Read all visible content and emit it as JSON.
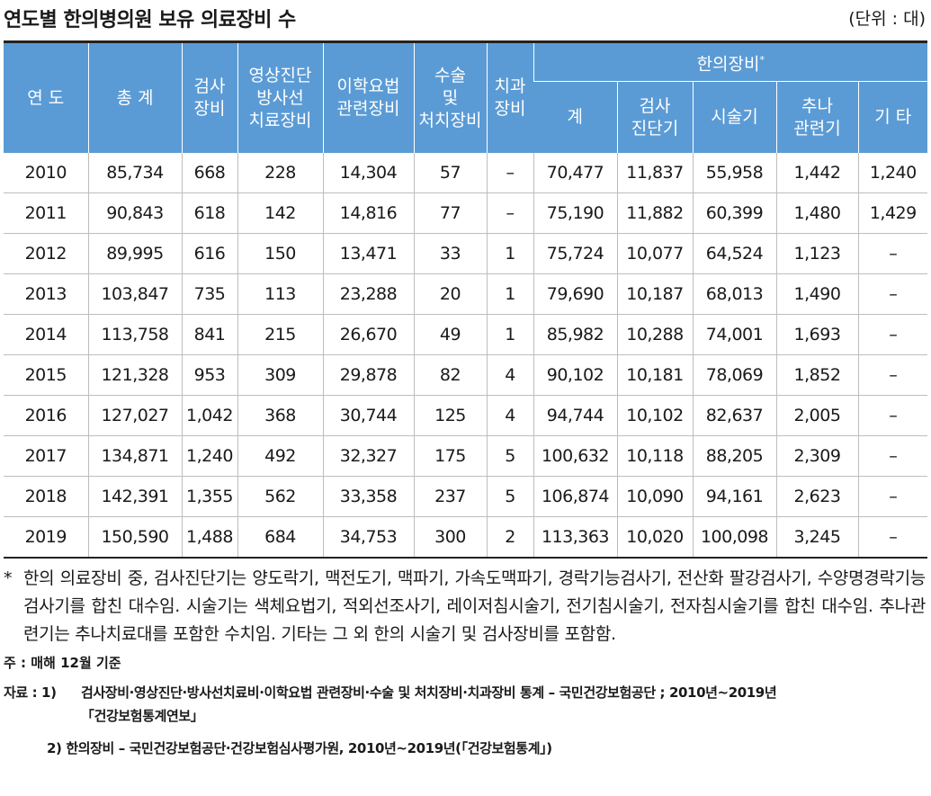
{
  "title": "연도별 한의병의원 보유 의료장비 수",
  "unit": "(단위 : 대)",
  "headers": {
    "year": "연 도",
    "total": "총 계",
    "exam_1": "검사",
    "exam_2": "장비",
    "imaging_1": "영상진단",
    "imaging_2": "방사선",
    "imaging_3": "치료장비",
    "physio_1": "이학요법",
    "physio_2": "관련장비",
    "surgery_1": "수술",
    "surgery_2": "및",
    "surgery_3": "처치장비",
    "dental_1": "치과",
    "dental_2": "장비",
    "oriental": "한의장비",
    "oriental_sup": "*",
    "sub_total": "계",
    "sub_diag_1": "검사",
    "sub_diag_2": "진단기",
    "sub_treat": "시술기",
    "sub_chuna_1": "추나",
    "sub_chuna_2": "관련기",
    "sub_other": "기 타"
  },
  "rows": [
    [
      "2010",
      "85,734",
      "668",
      "228",
      "14,304",
      "57",
      "–",
      "70,477",
      "11,837",
      "55,958",
      "1,442",
      "1,240"
    ],
    [
      "2011",
      "90,843",
      "618",
      "142",
      "14,816",
      "77",
      "–",
      "75,190",
      "11,882",
      "60,399",
      "1,480",
      "1,429"
    ],
    [
      "2012",
      "89,995",
      "616",
      "150",
      "13,471",
      "33",
      "1",
      "75,724",
      "10,077",
      "64,524",
      "1,123",
      "–"
    ],
    [
      "2013",
      "103,847",
      "735",
      "113",
      "23,288",
      "20",
      "1",
      "79,690",
      "10,187",
      "68,013",
      "1,490",
      "–"
    ],
    [
      "2014",
      "113,758",
      "841",
      "215",
      "26,670",
      "49",
      "1",
      "85,982",
      "10,288",
      "74,001",
      "1,693",
      "–"
    ],
    [
      "2015",
      "121,328",
      "953",
      "309",
      "29,878",
      "82",
      "4",
      "90,102",
      "10,181",
      "78,069",
      "1,852",
      "–"
    ],
    [
      "2016",
      "127,027",
      "1,042",
      "368",
      "30,744",
      "125",
      "4",
      "94,744",
      "10,102",
      "82,637",
      "2,005",
      "–"
    ],
    [
      "2017",
      "134,871",
      "1,240",
      "492",
      "32,327",
      "175",
      "5",
      "100,632",
      "10,118",
      "88,205",
      "2,309",
      "–"
    ],
    [
      "2018",
      "142,391",
      "1,355",
      "562",
      "33,358",
      "237",
      "5",
      "106,874",
      "10,090",
      "94,161",
      "2,623",
      "–"
    ],
    [
      "2019",
      "150,590",
      "1,488",
      "684",
      "34,753",
      "300",
      "2",
      "113,363",
      "10,020",
      "100,098",
      "3,245",
      "–"
    ]
  ],
  "notes": {
    "star_mark": "*",
    "star_text": "한의 의료장비 중, 검사진단기는 양도락기, 맥전도기, 맥파기, 가속도맥파기, 경락기능검사기, 전산화 팔강검사기, 수양명경락기능검사기를 합친 대수임. 시술기는 색체요법기, 적외선조사기, 레이저침시술기, 전기침시술기, 전자침시술기를 합친 대수임. 추나관련기는 추나치료대를 포함한 수치임. 기타는 그 외 한의 시술기 및 검사장비를 포함함.",
    "ju": "주 : 매해 12월 기준",
    "src_label": "자료 : 1)",
    "src1_line1": "검사장비·영상진단·방사선치료비·이학요법 관련장비·수술 및 처치장비·치과장비 통계 – 국민건강보험공단 ; 2010년~2019년",
    "src1_line2": "「건강보험통계연보」",
    "src2": "2) 한의장비 – 국민건강보험공단·건강보험심사평가원, 2010년~2019년(「건강보험통계」)"
  }
}
